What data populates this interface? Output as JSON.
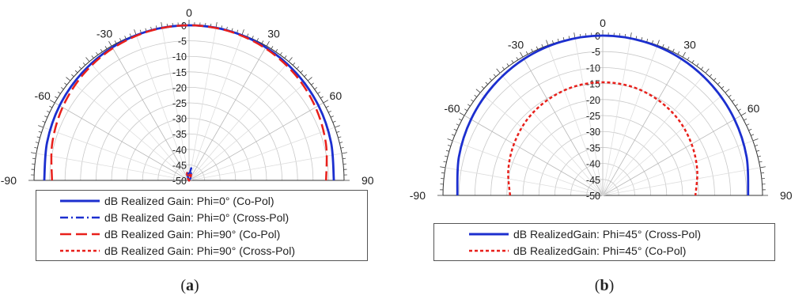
{
  "colors": {
    "blue": "#1c2fcf",
    "red": "#e8201b"
  },
  "chart_data": [
    {
      "panel": "a",
      "type": "polar",
      "caption_pre": "(",
      "caption_letter": "a",
      "caption_post": ")",
      "angle_range": [
        -90,
        90
      ],
      "angle_ticks": [
        -90,
        -60,
        -30,
        0,
        30,
        60,
        90
      ],
      "radial_range": [
        -50,
        0
      ],
      "radial_ticks": [
        0,
        -5,
        -10,
        -15,
        -20,
        -25,
        -30,
        -35,
        -40,
        -45,
        -50
      ],
      "grid": true,
      "legend_placement": "bottom",
      "series": [
        {
          "name": "dB Realized Gain:  Phi=0° (Co-Pol)",
          "color": "#1c2fcf",
          "style": "solid",
          "theta": [
            -90,
            -75,
            -60,
            -45,
            -30,
            -15,
            0,
            15,
            30,
            45,
            60,
            75,
            90
          ],
          "r": [
            -3.3,
            -2.6,
            -1.8,
            -1.1,
            -0.5,
            -0.1,
            0,
            -0.1,
            -0.5,
            -1.1,
            -1.8,
            -2.6,
            -3.3
          ]
        },
        {
          "name": "dB Realized Gain:  Phi=0° (Cross-Pol)",
          "color": "#1c2fcf",
          "style": "dashdot",
          "theta": [
            -90,
            -60,
            -30,
            -10,
            0,
            10,
            30,
            60,
            90
          ],
          "r": [
            -50,
            -50,
            -49.5,
            -47,
            -48.5,
            -46,
            -49,
            -50,
            -50
          ]
        },
        {
          "name": "dB Realized Gain:  Phi=90° (Co-Pol)",
          "color": "#e8201b",
          "style": "dashed",
          "theta": [
            -90,
            -75,
            -60,
            -45,
            -30,
            -15,
            0,
            15,
            30,
            45,
            60,
            75,
            90
          ],
          "r": [
            -5.8,
            -4.3,
            -2.9,
            -1.7,
            -0.8,
            -0.2,
            0,
            -0.2,
            -0.8,
            -1.7,
            -2.9,
            -4.3,
            -5.8
          ]
        },
        {
          "name": "dB Realized Gain:  Phi=90° (Cross-Pol)",
          "color": "#e8201b",
          "style": "dotted",
          "theta": [
            -90,
            -60,
            -30,
            -15,
            0,
            15,
            30,
            60,
            90
          ],
          "r": [
            -50,
            -50,
            -49,
            -47.5,
            -48.5,
            -47.5,
            -49,
            -50,
            -50
          ]
        }
      ]
    },
    {
      "panel": "b",
      "type": "polar",
      "caption_pre": "(",
      "caption_letter": "b",
      "caption_post": ")",
      "angle_range": [
        -90,
        90
      ],
      "angle_ticks": [
        -90,
        -60,
        -30,
        0,
        30,
        60,
        90
      ],
      "radial_range": [
        -50,
        0
      ],
      "radial_ticks": [
        0,
        -5,
        -10,
        -15,
        -20,
        -25,
        -30,
        -35,
        -40,
        -45,
        -50
      ],
      "grid": true,
      "legend_placement": "bottom",
      "series": [
        {
          "name": "dB RealizedGain: Phi=45° (Cross-Pol)",
          "color": "#1c2fcf",
          "style": "solid",
          "theta": [
            -90,
            -75,
            -60,
            -45,
            -30,
            -15,
            0,
            15,
            30,
            45,
            60,
            75,
            90
          ],
          "r": [
            -4.5,
            -3.4,
            -2.4,
            -1.5,
            -0.7,
            -0.2,
            0,
            -0.2,
            -0.7,
            -1.5,
            -2.4,
            -3.4,
            -4.5
          ]
        },
        {
          "name": "dB RealizedGain: Phi=45° (Co-Pol)",
          "color": "#e8201b",
          "style": "dotted",
          "theta": [
            -90,
            -75,
            -60,
            -45,
            -30,
            -15,
            0,
            15,
            30,
            45,
            60,
            75,
            90
          ],
          "r": [
            -21,
            -19.4,
            -17.9,
            -16.5,
            -15.5,
            -14.8,
            -14.6,
            -14.8,
            -15.5,
            -16.5,
            -17.9,
            -19.4,
            -21
          ]
        }
      ]
    }
  ]
}
